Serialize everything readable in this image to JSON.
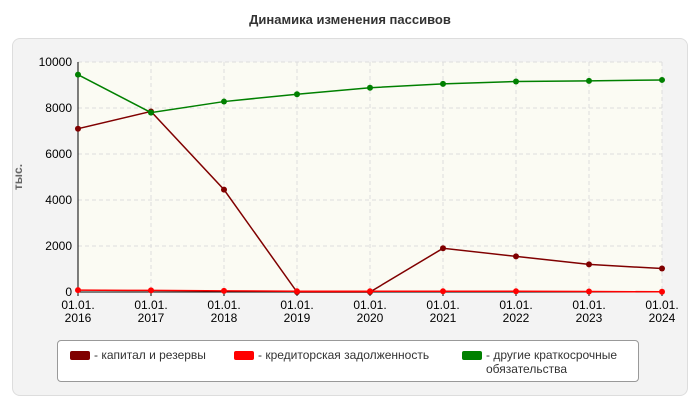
{
  "chart_data": {
    "type": "line",
    "title": "Динамика изменения пассивов",
    "ylabel": "тыс.",
    "categories": [
      "01.01. 2016",
      "01.01. 2017",
      "01.01. 2018",
      "01.01. 2019",
      "01.01. 2020",
      "01.01. 2021",
      "01.01. 2022",
      "01.01. 2023",
      "01.01. 2024"
    ],
    "series": [
      {
        "name": "- капитал и резервы",
        "color": "#800000",
        "values": [
          7100,
          7850,
          4450,
          0,
          0,
          1900,
          1550,
          1200,
          1020
        ]
      },
      {
        "name": "- кредиторская задолженность",
        "color": "#ff0000",
        "values": [
          80,
          70,
          50,
          30,
          30,
          30,
          30,
          20,
          10
        ]
      },
      {
        "name": "- другие краткосрочные обязательства",
        "color": "#008000",
        "values": [
          9450,
          7800,
          8280,
          8600,
          8880,
          9050,
          9150,
          9180,
          9220
        ]
      }
    ],
    "ylim": [
      0,
      10000
    ],
    "yticks": [
      0,
      2000,
      4000,
      6000,
      8000,
      10000
    ],
    "grid": true
  }
}
